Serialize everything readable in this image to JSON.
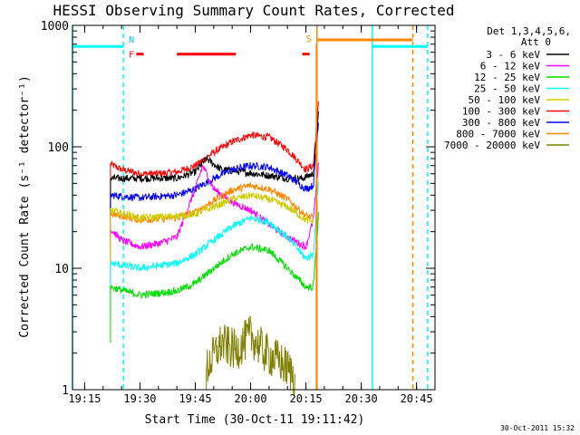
{
  "chart_data": {
    "type": "line",
    "title": "HESSI Observing Summary Count Rates, Corrected",
    "xlabel": "Start Time (30-Oct-11 19:11:42)",
    "ylabel": "Corrected Count Rate (s⁻¹ detector⁻¹)",
    "yscale": "log",
    "ylim": [
      1,
      1000
    ],
    "xlim": [
      "19:11:42",
      "20:50:00"
    ],
    "x_ticks": [
      "19:15",
      "19:30",
      "19:45",
      "20:00",
      "20:15",
      "20:30",
      "20:45"
    ],
    "y_ticks": [
      "1",
      "10",
      "100",
      "1000"
    ],
    "grid": false,
    "legend": {
      "header": [
        "Det 1,3,4,5,6,",
        "Att 0"
      ],
      "placement": "top-right outside",
      "entries": [
        {
          "label": "3 - 6 keV",
          "color": "#000000"
        },
        {
          "label": "6 - 12 keV",
          "color": "#ff00ff"
        },
        {
          "label": "12 - 25 keV",
          "color": "#00dd00"
        },
        {
          "label": "25 - 50 keV",
          "color": "#00ffff"
        },
        {
          "label": "50 - 100 keV",
          "color": "#cccc00"
        },
        {
          "label": "100 - 300 keV",
          "color": "#ff0000"
        },
        {
          "label": "300 - 800 keV",
          "color": "#0000ff"
        },
        {
          "label": "800 - 7000 keV",
          "color": "#ff8800"
        },
        {
          "label": "7000 - 20000 keV",
          "color": "#808000"
        }
      ]
    },
    "series": [
      {
        "color": "#ff0000",
        "x": [
          "19:22",
          "19:25",
          "19:30",
          "19:35",
          "19:40",
          "19:45",
          "19:50",
          "19:55",
          "20:00",
          "20:05",
          "20:10",
          "20:15",
          "20:17",
          "20:18:30"
        ],
        "y": [
          72,
          65,
          60,
          60,
          62,
          70,
          90,
          110,
          125,
          120,
          95,
          65,
          70,
          260
        ]
      },
      {
        "color": "#000000",
        "x": [
          "19:22",
          "19:30",
          "19:40",
          "19:45",
          "19:48",
          "19:52",
          "19:58",
          "20:05",
          "20:10",
          "20:14",
          "20:17",
          "20:18:30"
        ],
        "y": [
          55,
          55,
          55,
          62,
          80,
          65,
          62,
          58,
          55,
          55,
          60,
          200
        ]
      },
      {
        "color": "#0000ff",
        "x": [
          "19:22",
          "19:30",
          "19:40",
          "19:45",
          "19:50",
          "19:55",
          "20:00",
          "20:05",
          "20:10",
          "20:15",
          "20:17",
          "20:18:30"
        ],
        "y": [
          40,
          38,
          40,
          45,
          55,
          65,
          70,
          68,
          58,
          45,
          48,
          180
        ]
      },
      {
        "color": "#ff00ff",
        "x": [
          "19:22",
          "19:25",
          "19:30",
          "19:35",
          "19:40",
          "19:45",
          "19:47",
          "19:50",
          "19:55",
          "20:00",
          "20:05",
          "20:10",
          "20:15",
          "20:17",
          "20:18:30"
        ],
        "y": [
          21,
          17,
          15,
          16,
          18,
          45,
          70,
          45,
          35,
          30,
          23,
          18,
          15,
          25,
          80
        ]
      },
      {
        "color": "#ff8800",
        "x": [
          "19:22",
          "19:30",
          "19:40",
          "19:45",
          "19:50",
          "19:55",
          "20:00",
          "20:05",
          "20:10",
          "20:15",
          "20:17"
        ],
        "y": [
          28,
          25,
          26,
          29,
          36,
          44,
          48,
          45,
          37,
          27,
          26
        ]
      },
      {
        "color": "#cccc00",
        "x": [
          "19:22",
          "19:30",
          "19:40",
          "19:45",
          "19:50",
          "19:55",
          "20:00",
          "20:05",
          "20:10",
          "20:15",
          "20:17"
        ],
        "y": [
          30,
          26,
          27,
          28,
          32,
          37,
          40,
          37,
          32,
          25,
          24
        ]
      },
      {
        "color": "#00ffff",
        "x": [
          "19:22",
          "19:30",
          "19:40",
          "19:45",
          "19:50",
          "19:55",
          "20:00",
          "20:05",
          "20:10",
          "20:15",
          "20:17",
          "20:18:30"
        ],
        "y": [
          11,
          10,
          11,
          13,
          17,
          22,
          26,
          24,
          18,
          12,
          13,
          60
        ]
      },
      {
        "color": "#00dd00",
        "x": [
          "19:22",
          "19:30",
          "19:40",
          "19:45",
          "19:50",
          "19:55",
          "20:00",
          "20:05",
          "20:10",
          "20:15",
          "20:17",
          "20:18:30"
        ],
        "y": [
          7,
          6,
          6.5,
          7.5,
          10,
          13,
          15,
          14,
          10,
          7,
          7,
          30
        ]
      },
      {
        "color": "#808000",
        "x": [
          "19:48",
          "19:52",
          "19:56",
          "20:00",
          "20:04",
          "20:08",
          "20:12"
        ],
        "y": [
          1.5,
          2.4,
          2.1,
          2.8,
          2.0,
          1.7,
          1.3
        ]
      }
    ],
    "annotations": [
      {
        "text": "N",
        "color": "#00bfff"
      },
      {
        "text": "F",
        "color": "#ff0000"
      },
      {
        "text": "S",
        "color": "#ff8800"
      }
    ],
    "attenuator_flag_segments": [
      {
        "color": "#00ffff",
        "x": [
          "19:11:42",
          "19:25:30"
        ],
        "y": 670
      },
      {
        "color": "#00ffff",
        "x": [
          "20:33",
          "20:48"
        ],
        "y": 670
      },
      {
        "color": "#ff8800",
        "x": [
          "20:18",
          "20:44"
        ],
        "y": 760
      },
      {
        "color": "#ff0000",
        "x": [
          "19:29",
          "19:31"
        ],
        "y": 580
      },
      {
        "color": "#ff0000",
        "x": [
          "19:40",
          "19:56"
        ],
        "y": 580
      },
      {
        "color": "#ff0000",
        "x": [
          "20:14",
          "20:16"
        ],
        "y": 580
      }
    ],
    "vertical_lines": [
      {
        "color": "#00ffff",
        "x": "19:11:42",
        "style": "solid"
      },
      {
        "color": "#00ffff",
        "x": "19:25:30",
        "style": "dashed"
      },
      {
        "color": "#ff8800",
        "x": "20:18",
        "style": "solid"
      },
      {
        "color": "#00ffff",
        "x": "20:33",
        "style": "solid"
      },
      {
        "color": "#ff8800",
        "x": "20:44",
        "style": "dashed"
      },
      {
        "color": "#00ffff",
        "x": "20:48",
        "style": "dashed"
      }
    ]
  },
  "footer": {
    "timestamp": "30-Oct-2011 15:32"
  }
}
